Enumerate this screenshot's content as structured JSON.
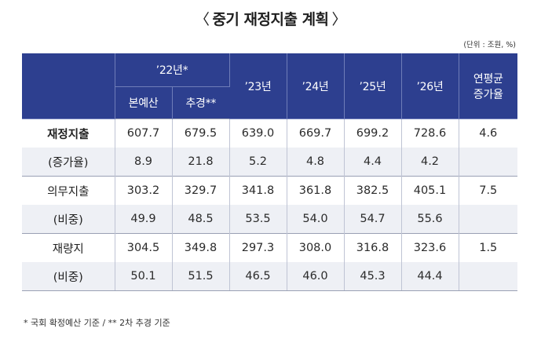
{
  "title": {
    "open": "〈",
    "text": "중기 재정지출 계획",
    "close": "〉"
  },
  "unit": "(단위 : 조원, %)",
  "headers": {
    "y22": "’22년*",
    "y22_sub1": "본예산",
    "y22_sub2": "추경**",
    "y23": "’23년",
    "y24": "’24년",
    "y25": "’25년",
    "y26": "’26년",
    "avg_line1": "연평균",
    "avg_line2": "증가율"
  },
  "rows": [
    {
      "label": "재정지출",
      "values": [
        "607.7",
        "679.5",
        "639.0",
        "669.7",
        "699.2",
        "728.6"
      ],
      "avg": "4.6"
    },
    {
      "label": "(증가율)",
      "values": [
        "8.9",
        "21.8",
        "5.2",
        "4.8",
        "4.4",
        "4.2"
      ],
      "avg": ""
    },
    {
      "label": "의무지출",
      "values": [
        "303.2",
        "329.7",
        "341.8",
        "361.8",
        "382.5",
        "405.1"
      ],
      "avg": "7.5"
    },
    {
      "label": "(비중)",
      "values": [
        "49.9",
        "48.5",
        "53.5",
        "54.0",
        "54.7",
        "55.6"
      ],
      "avg": ""
    },
    {
      "label": "재량지",
      "values": [
        "304.5",
        "349.8",
        "297.3",
        "308.0",
        "316.8",
        "323.6"
      ],
      "avg": "1.5"
    },
    {
      "label": "(비중)",
      "values": [
        "50.1",
        "51.5",
        "46.5",
        "46.0",
        "45.3",
        "44.4"
      ],
      "avg": ""
    }
  ],
  "footnote": "* 국회 확정예산 기준 / ** 2차 추경 기준",
  "colors": {
    "header_bg": "#2d3f8f",
    "shade_bg": "#eef0f5"
  }
}
